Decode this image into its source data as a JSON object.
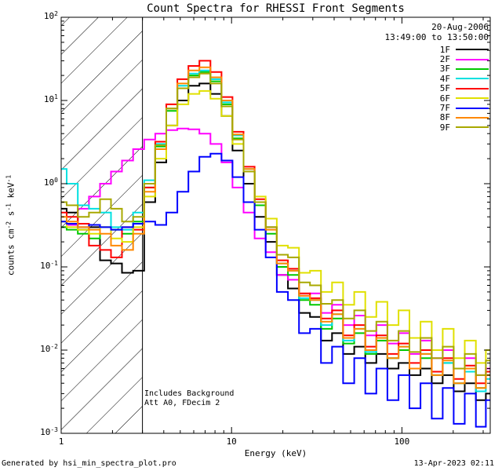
{
  "legend": {
    "date": "20-Aug-2006",
    "time_range": "13:49:00 to 13:50:00"
  },
  "annotations": {
    "line1": "Includes Background",
    "line2": "Att A0, FDecim 2"
  },
  "footer": {
    "left": "Generated by hsi_min_spectra_plot.pro",
    "right": "13-Apr-2023 02:11"
  },
  "axes": {
    "x_label": "Energy (keV)",
    "y_label_segments": [
      {
        "text": "counts cm"
      },
      {
        "text": "-2",
        "sup": true
      },
      {
        "text": " s"
      },
      {
        "text": "-1",
        "sup": true
      },
      {
        "text": " keV"
      },
      {
        "text": "-1",
        "sup": true
      }
    ],
    "x_ticks": [
      {
        "value": 1,
        "label": "1"
      },
      {
        "value": 10,
        "label": "10"
      },
      {
        "value": 100,
        "label": "100"
      }
    ],
    "x_range": [
      1,
      330
    ],
    "y_range_exp": [
      -3,
      2
    ]
  },
  "hatch_region": {
    "x_min": 1,
    "x_max": 3
  },
  "chart_data": {
    "type": "line",
    "title": "Count Spectra for RHESSI Front Segments",
    "xlabel": "Energy (keV)",
    "ylabel": "counts cm-2 s-1 keV-1",
    "xscale": "log",
    "yscale": "log",
    "xlim": [
      1,
      330
    ],
    "ylim": [
      0.001,
      100
    ],
    "legend_position": "upper right",
    "grid": false,
    "line_style": "histogram-step",
    "x": [
      1.0,
      1.16,
      1.35,
      1.57,
      1.82,
      2.11,
      2.45,
      2.85,
      3.31,
      3.84,
      4.46,
      5.18,
      6.01,
      6.98,
      8.1,
      9.41,
      10.9,
      12.7,
      14.7,
      17.1,
      19.9,
      23.1,
      26.8,
      31.1,
      36.1,
      41.9,
      48.7,
      56.6,
      65.7,
      76.3,
      88.6,
      103,
      119,
      139,
      161,
      187,
      217,
      252,
      293,
      330
    ],
    "series": [
      {
        "name": "1F",
        "color": "#000000",
        "values": [
          0.5,
          0.45,
          0.28,
          0.3,
          0.12,
          0.11,
          0.085,
          0.09,
          0.6,
          1.8,
          5.0,
          10,
          15,
          16,
          12,
          6.5,
          2.5,
          1.0,
          0.4,
          0.2,
          0.08,
          0.055,
          0.028,
          0.025,
          0.013,
          0.016,
          0.009,
          0.011,
          0.007,
          0.009,
          0.006,
          0.007,
          0.005,
          0.006,
          0.004,
          0.005,
          0.0032,
          0.004,
          0.0025,
          0.003
        ]
      },
      {
        "name": "2F",
        "color": "#ff00ff",
        "values": [
          0.3,
          0.32,
          0.5,
          0.7,
          1.0,
          1.4,
          1.9,
          2.6,
          3.4,
          4.0,
          4.4,
          4.6,
          4.5,
          4.0,
          3.0,
          1.8,
          0.9,
          0.45,
          0.22,
          0.15,
          0.08,
          0.07,
          0.045,
          0.048,
          0.028,
          0.035,
          0.02,
          0.026,
          0.015,
          0.02,
          0.012,
          0.016,
          0.009,
          0.013,
          0.008,
          0.01,
          0.006,
          0.008,
          0.005,
          0.006
        ]
      },
      {
        "name": "3F",
        "color": "#00c800",
        "values": [
          0.3,
          0.28,
          0.25,
          0.22,
          0.3,
          0.28,
          0.25,
          0.35,
          0.9,
          2.8,
          7.5,
          14,
          20,
          22,
          17,
          9.0,
          3.5,
          1.4,
          0.55,
          0.25,
          0.1,
          0.08,
          0.04,
          0.035,
          0.018,
          0.024,
          0.012,
          0.016,
          0.009,
          0.013,
          0.008,
          0.01,
          0.006,
          0.008,
          0.005,
          0.007,
          0.004,
          0.006,
          0.0035,
          0.005
        ]
      },
      {
        "name": "4F",
        "color": "#00e0e0",
        "values": [
          1.5,
          1.0,
          0.55,
          0.5,
          0.45,
          0.3,
          0.28,
          0.45,
          1.1,
          3.0,
          8.0,
          15,
          21,
          23,
          18,
          9.5,
          3.8,
          1.5,
          0.6,
          0.3,
          0.11,
          0.09,
          0.042,
          0.04,
          0.02,
          0.027,
          0.013,
          0.018,
          0.0095,
          0.014,
          0.008,
          0.011,
          0.006,
          0.009,
          0.005,
          0.007,
          0.004,
          0.0055,
          0.0032,
          0.0045
        ]
      },
      {
        "name": "5F",
        "color": "#ff0000",
        "values": [
          0.45,
          0.4,
          0.33,
          0.18,
          0.16,
          0.13,
          0.3,
          0.28,
          0.9,
          3.2,
          9.0,
          18,
          26,
          30,
          22,
          11,
          4.2,
          1.6,
          0.65,
          0.3,
          0.12,
          0.095,
          0.048,
          0.042,
          0.024,
          0.03,
          0.015,
          0.02,
          0.011,
          0.015,
          0.009,
          0.012,
          0.007,
          0.01,
          0.0055,
          0.008,
          0.0045,
          0.0065,
          0.004,
          0.0055
        ]
      },
      {
        "name": "6F",
        "color": "#e0e000",
        "values": [
          0.35,
          0.3,
          0.28,
          0.25,
          0.3,
          0.22,
          0.2,
          0.3,
          0.7,
          2.0,
          5.0,
          9.0,
          12,
          13,
          10.5,
          6.5,
          3.0,
          1.4,
          0.7,
          0.38,
          0.18,
          0.17,
          0.085,
          0.09,
          0.05,
          0.065,
          0.035,
          0.05,
          0.025,
          0.038,
          0.02,
          0.03,
          0.014,
          0.022,
          0.01,
          0.018,
          0.008,
          0.013,
          0.007,
          0.01
        ]
      },
      {
        "name": "7F",
        "color": "#0000ff",
        "values": [
          0.35,
          0.33,
          0.3,
          0.32,
          0.3,
          0.28,
          0.3,
          0.33,
          0.35,
          0.32,
          0.45,
          0.8,
          1.4,
          2.1,
          2.3,
          1.9,
          1.2,
          0.6,
          0.28,
          0.13,
          0.05,
          0.04,
          0.016,
          0.018,
          0.007,
          0.011,
          0.004,
          0.008,
          0.003,
          0.006,
          0.0025,
          0.005,
          0.002,
          0.004,
          0.0015,
          0.0035,
          0.0013,
          0.003,
          0.0012,
          0.0025
        ]
      },
      {
        "name": "8F",
        "color": "#ff8800",
        "values": [
          0.4,
          0.35,
          0.3,
          0.28,
          0.25,
          0.18,
          0.16,
          0.25,
          0.8,
          2.6,
          8.0,
          16,
          23,
          25,
          19,
          10,
          3.9,
          1.5,
          0.6,
          0.28,
          0.11,
          0.09,
          0.045,
          0.04,
          0.022,
          0.027,
          0.014,
          0.018,
          0.01,
          0.014,
          0.008,
          0.011,
          0.006,
          0.009,
          0.005,
          0.0075,
          0.004,
          0.006,
          0.0035,
          0.005
        ]
      },
      {
        "name": "9F",
        "color": "#a8a800",
        "values": [
          0.6,
          0.55,
          0.4,
          0.45,
          0.65,
          0.5,
          0.35,
          0.4,
          1.0,
          2.9,
          8.0,
          14,
          19,
          21,
          16,
          8.5,
          3.4,
          1.4,
          0.6,
          0.3,
          0.14,
          0.13,
          0.065,
          0.06,
          0.036,
          0.04,
          0.024,
          0.03,
          0.017,
          0.022,
          0.013,
          0.017,
          0.0095,
          0.014,
          0.008,
          0.011,
          0.006,
          0.009,
          0.005,
          0.0075
        ]
      }
    ]
  }
}
